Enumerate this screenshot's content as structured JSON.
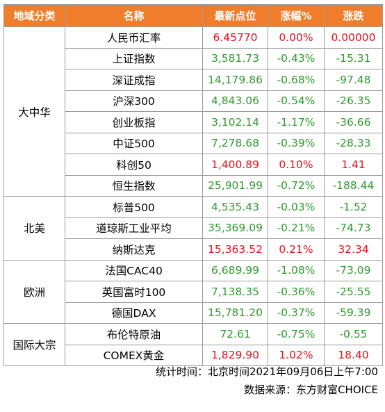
{
  "headers": [
    "地域分类",
    "名称",
    "最新点位",
    "涨幅%",
    "涨跌"
  ],
  "colors": {
    "header_bg": "#ef7d2c",
    "up": "#e8111c",
    "down": "#2e9b2e"
  },
  "groups": [
    {
      "region": "大中华",
      "rows": [
        {
          "name": "人民币汇率",
          "value": "6.45770",
          "pct": "0.00%",
          "chg": "0.00000",
          "dir": "up"
        },
        {
          "name": "上证指数",
          "value": "3,581.73",
          "pct": "-0.43%",
          "chg": "-15.31",
          "dir": "down"
        },
        {
          "name": "深证成指",
          "value": "14,179.86",
          "pct": "-0.68%",
          "chg": "-97.48",
          "dir": "down"
        },
        {
          "name": "沪深300",
          "value": "4,843.06",
          "pct": "-0.54%",
          "chg": "-26.35",
          "dir": "down"
        },
        {
          "name": "创业板指",
          "value": "3,102.14",
          "pct": "-1.17%",
          "chg": "-36.66",
          "dir": "down"
        },
        {
          "name": "中证500",
          "value": "7,278.68",
          "pct": "-0.39%",
          "chg": "-28.33",
          "dir": "down"
        },
        {
          "name": "科创50",
          "value": "1,400.89",
          "pct": "0.10%",
          "chg": "1.41",
          "dir": "up"
        },
        {
          "name": "恒生指数",
          "value": "25,901.99",
          "pct": "-0.72%",
          "chg": "-188.44",
          "dir": "down"
        }
      ]
    },
    {
      "region": "北美",
      "rows": [
        {
          "name": "标普500",
          "value": "4,535.43",
          "pct": "-0.03%",
          "chg": "-1.52",
          "dir": "down"
        },
        {
          "name": "道琼斯工业平均",
          "value": "35,369.09",
          "pct": "-0.21%",
          "chg": "-74.73",
          "dir": "down"
        },
        {
          "name": "纳斯达克",
          "value": "15,363.52",
          "pct": "0.21%",
          "chg": "32.34",
          "dir": "up"
        }
      ]
    },
    {
      "region": "欧洲",
      "rows": [
        {
          "name": "法国CAC40",
          "value": "6,689.99",
          "pct": "-1.08%",
          "chg": "-73.09",
          "dir": "down"
        },
        {
          "name": "英国富时100",
          "value": "7,138.35",
          "pct": "-0.36%",
          "chg": "-25.55",
          "dir": "down"
        },
        {
          "name": "德国DAX",
          "value": "15,781.20",
          "pct": "-0.37%",
          "chg": "-59.39",
          "dir": "down"
        }
      ]
    },
    {
      "region": "国际大宗",
      "rows": [
        {
          "name": "布伦特原油",
          "value": "72.61",
          "pct": "-0.75%",
          "chg": "-0.55",
          "dir": "down"
        },
        {
          "name": "COMEX黄金",
          "value": "1,829.90",
          "pct": "1.02%",
          "chg": "18.40",
          "dir": "up"
        }
      ]
    }
  ],
  "footer": {
    "stat_time": "统计时间：北京时间2021年09月06日上午7:00",
    "source": "数据来源：东方财富CHOICE"
  }
}
